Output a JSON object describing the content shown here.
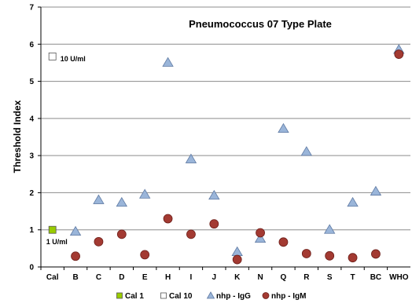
{
  "chart_data": {
    "type": "scatter",
    "title": "Pneumococcus 07 Type Plate",
    "ylabel": "Threshold Index",
    "xlabel": "",
    "ylim": [
      0,
      7
    ],
    "yticks": [
      "0",
      "1",
      "2",
      "3",
      "4",
      "5",
      "6",
      "7"
    ],
    "grid": true,
    "legend_position": "bottom",
    "categories": [
      "Cal",
      "B",
      "C",
      "D",
      "E",
      "H",
      "I",
      "J",
      "K",
      "N",
      "Q",
      "R",
      "S",
      "T",
      "BC",
      "WHO"
    ],
    "series": [
      {
        "name": "Cal 1",
        "marker": "square",
        "color": "#99cc00",
        "points": [
          {
            "x": "Cal",
            "y": 1.0
          }
        ]
      },
      {
        "name": "Cal 10",
        "marker": "square",
        "color": "#ffffff",
        "points": []
      },
      {
        "name": "nhp - IgG",
        "marker": "triangle",
        "color": "#9ab5d9",
        "points": [
          {
            "x": "B",
            "y": 0.95
          },
          {
            "x": "C",
            "y": 1.8
          },
          {
            "x": "D",
            "y": 1.73
          },
          {
            "x": "E",
            "y": 1.95
          },
          {
            "x": "H",
            "y": 5.5
          },
          {
            "x": "I",
            "y": 2.9
          },
          {
            "x": "J",
            "y": 1.92
          },
          {
            "x": "K",
            "y": 0.4
          },
          {
            "x": "N",
            "y": 0.76
          },
          {
            "x": "Q",
            "y": 3.72
          },
          {
            "x": "R",
            "y": 3.1
          },
          {
            "x": "S",
            "y": 1.0
          },
          {
            "x": "T",
            "y": 1.73
          },
          {
            "x": "BC",
            "y": 2.03
          },
          {
            "x": "WHO",
            "y": 5.85
          }
        ]
      },
      {
        "name": "nhp - IgM",
        "marker": "circle",
        "color": "#a33a32",
        "points": [
          {
            "x": "B",
            "y": 0.29
          },
          {
            "x": "C",
            "y": 0.68
          },
          {
            "x": "D",
            "y": 0.88
          },
          {
            "x": "E",
            "y": 0.33
          },
          {
            "x": "H",
            "y": 1.3
          },
          {
            "x": "I",
            "y": 0.88
          },
          {
            "x": "J",
            "y": 1.16
          },
          {
            "x": "K",
            "y": 0.2
          },
          {
            "x": "N",
            "y": 0.92
          },
          {
            "x": "Q",
            "y": 0.67
          },
          {
            "x": "R",
            "y": 0.36
          },
          {
            "x": "S",
            "y": 0.3
          },
          {
            "x": "T",
            "y": 0.25
          },
          {
            "x": "BC",
            "y": 0.35
          },
          {
            "x": "WHO",
            "y": 5.73
          }
        ]
      }
    ],
    "annotations": [
      {
        "text": "10 U/ml",
        "y": 5.6
      },
      {
        "text": "1 U/ml",
        "y": 0.68
      }
    ],
    "annotation_marker": {
      "series": "Cal 10",
      "y": 5.67
    }
  }
}
